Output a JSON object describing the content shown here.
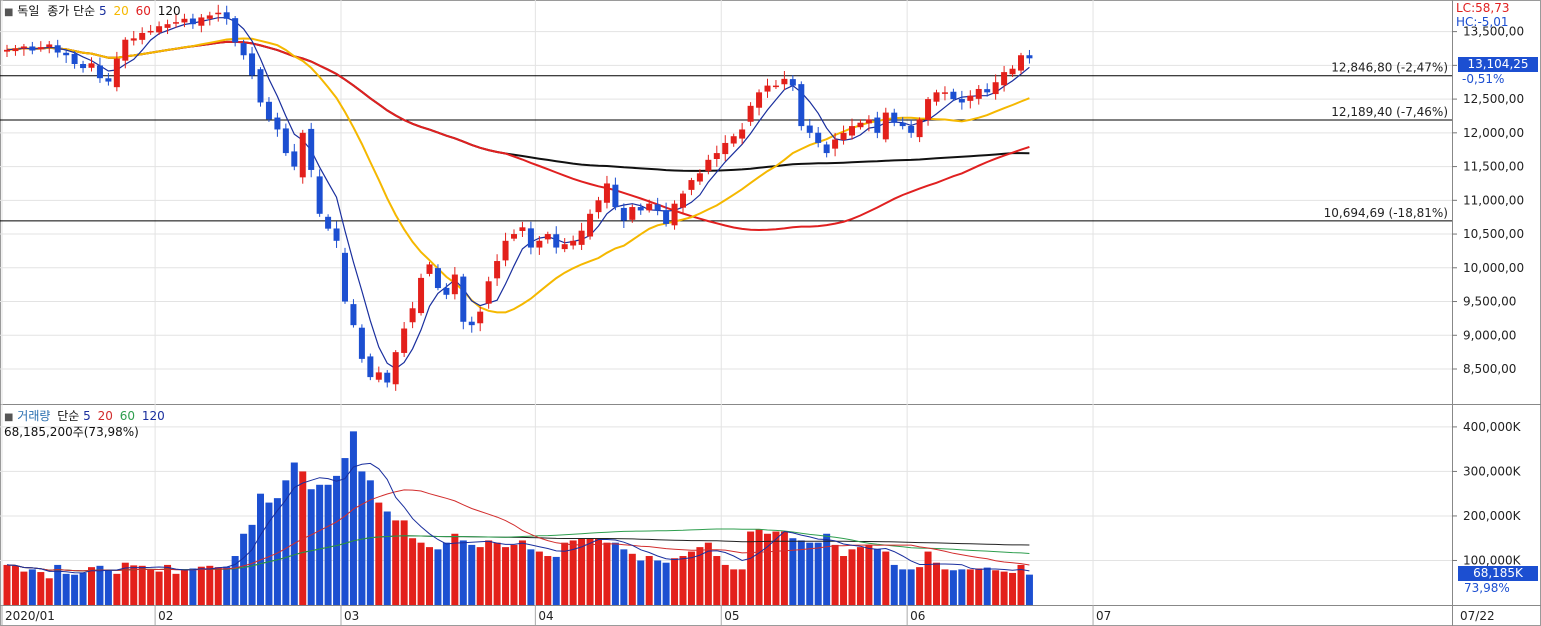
{
  "colors": {
    "up": "#e3201b",
    "down": "#1c4fd1",
    "ma5": "#1a2f9e",
    "ma20": "#f5b800",
    "ma60": "#e02020",
    "ma120": "#111111",
    "vma20": "#d22d2d",
    "vma60": "#2e9e4e",
    "vma120": "#222222",
    "label_bg": "#1c4fd1"
  },
  "price_legend": {
    "marker": "■",
    "name": "독일",
    "ma_type": "종가 단순",
    "p5": "5",
    "p20": "20",
    "p60": "60",
    "p120": "120"
  },
  "price_info": {
    "lc": "LC:58,73",
    "hc": "HC:-5,01",
    "last": "13,104,25",
    "last_change": "-0,51%"
  },
  "volume_legend": {
    "marker": "■",
    "name": "거래량",
    "ma_type": "단순",
    "p5": "5",
    "p20": "20",
    "p60": "60",
    "p120": "120",
    "current": "68,185,200주(73,98%)"
  },
  "volume_info": {
    "last": "68,185K",
    "ratio": "73,98%"
  },
  "levels": [
    {
      "label": "12,846,80 (-2,47%)",
      "value": 12846.8
    },
    {
      "label": "12,189,40 (-7,46%)",
      "value": 12189.4
    },
    {
      "label": "10,694,69 (-18,81%)",
      "value": 10694.69
    }
  ],
  "x_labels": [
    "2020/01",
    "02",
    "03",
    "04",
    "05",
    "06",
    "07",
    "07/22"
  ],
  "chart_data": {
    "type": "candlestick",
    "price_axis": {
      "ticks": [
        "13,500,00",
        "13,000,00",
        "12,500,00",
        "12,000,00",
        "11,500,00",
        "11,000,00",
        "10,500,00",
        "10,000,00",
        "9,500,00",
        "9,000,00",
        "8,500,00"
      ],
      "range": [
        8100,
        13850
      ]
    },
    "volume_axis": {
      "ticks": [
        "400,000K",
        "300,000K",
        "200,000K",
        "100,000K"
      ],
      "range": [
        0,
        420
      ]
    },
    "close": [
      13230,
      13250,
      13280,
      13220,
      13270,
      13310,
      13190,
      13150,
      13020,
      12960,
      13030,
      12810,
      12760,
      13100,
      13380,
      13400,
      13480,
      13510,
      13580,
      13610,
      13640,
      13690,
      13610,
      13710,
      13740,
      13780,
      13690,
      13340,
      13150,
      12850,
      12450,
      12200,
      12050,
      11700,
      11500,
      12000,
      11450,
      10800,
      10580,
      10400,
      9500,
      9150,
      8650,
      8380,
      8450,
      8300,
      8750,
      9100,
      9400,
      9850,
      10050,
      9700,
      9600,
      9900,
      9200,
      9150,
      9350,
      9800,
      10100,
      10400,
      10500,
      10600,
      10300,
      10400,
      10500,
      10300,
      10350,
      10400,
      10550,
      10800,
      11000,
      11250,
      10900,
      10700,
      10900,
      10850,
      10950,
      10850,
      10650,
      10950,
      11100,
      11300,
      11400,
      11600,
      11700,
      11850,
      11950,
      12050,
      12400,
      12600,
      12700,
      12700,
      12800,
      12700,
      12100,
      12000,
      11850,
      11700,
      11900,
      12000,
      12100,
      12150,
      12200,
      12000,
      12300,
      12150,
      12100,
      12000,
      12200,
      12500,
      12600,
      12600,
      12500,
      12450,
      12550,
      12650,
      12600,
      12750,
      12900,
      12950,
      13150,
      13104.25
    ],
    "volume": [
      90,
      88,
      75,
      80,
      74,
      60,
      90,
      70,
      68,
      72,
      85,
      88,
      78,
      70,
      95,
      89,
      88,
      80,
      75,
      90,
      70,
      78,
      82,
      86,
      88,
      85,
      86,
      110,
      160,
      180,
      250,
      230,
      240,
      280,
      320,
      300,
      260,
      270,
      270,
      290,
      330,
      390,
      300,
      280,
      230,
      210,
      190,
      190,
      150,
      140,
      130,
      125,
      140,
      160,
      145,
      135,
      130,
      145,
      140,
      130,
      135,
      145,
      125,
      120,
      110,
      108,
      140,
      145,
      150,
      150,
      150,
      140,
      140,
      125,
      115,
      100,
      110,
      100,
      95,
      105,
      110,
      120,
      130,
      140,
      110,
      90,
      80,
      80,
      165,
      170,
      160,
      165,
      165,
      150,
      145,
      140,
      140,
      160,
      135,
      110,
      125,
      130,
      135,
      125,
      120,
      90,
      80,
      80,
      85,
      120,
      95,
      80,
      78,
      80,
      80,
      82,
      84,
      78,
      75,
      72,
      90,
      68.2
    ],
    "colors_of_bars": "up=red, down=blue",
    "moving_averages_price": [
      "5",
      "20",
      "60",
      "120"
    ],
    "moving_averages_volume": [
      "5",
      "20",
      "60",
      "120"
    ]
  }
}
